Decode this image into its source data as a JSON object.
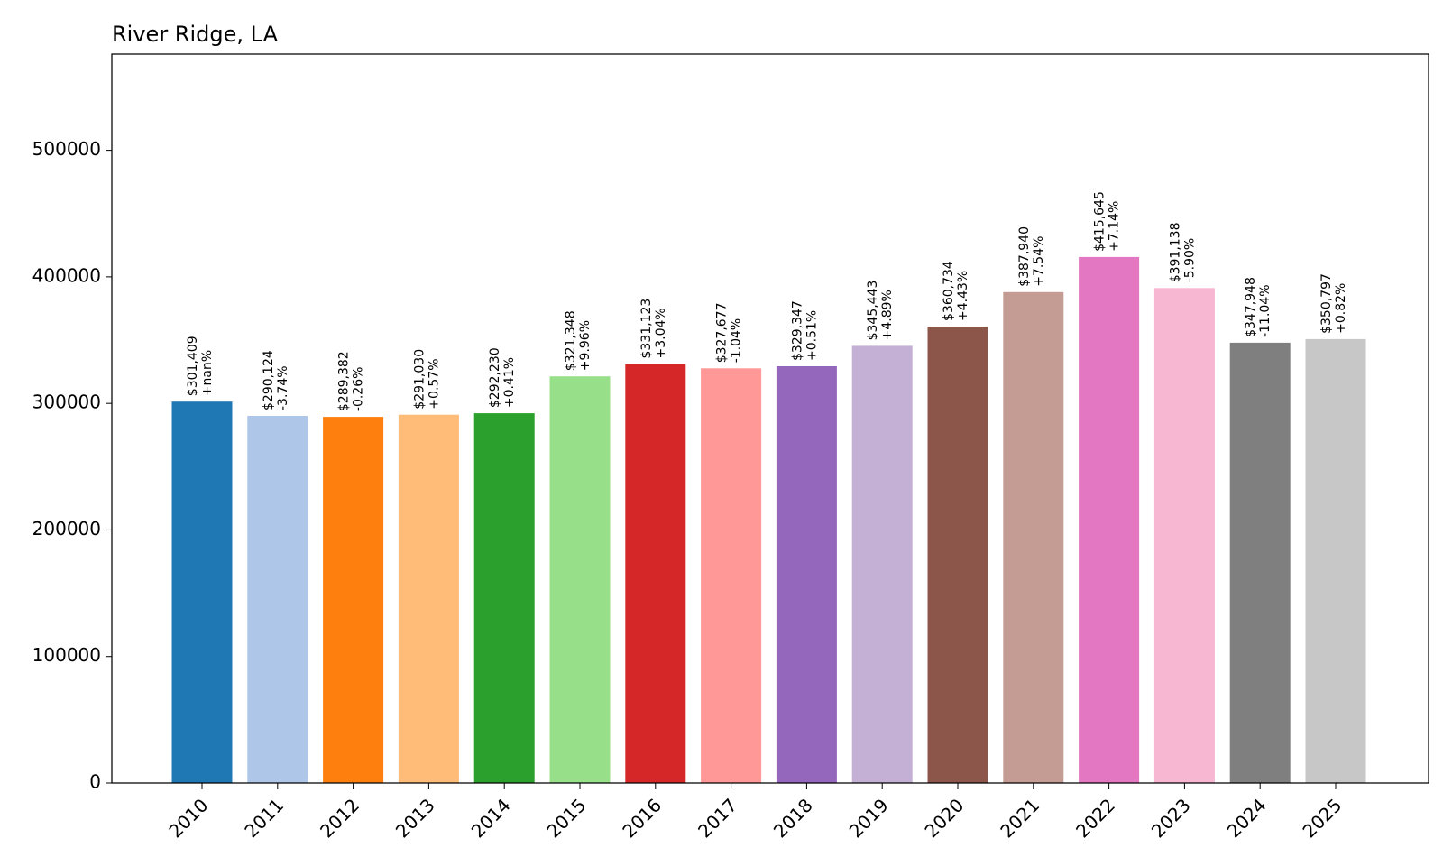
{
  "chart_data": {
    "type": "bar",
    "title": "River Ridge, LA",
    "xlabel": "",
    "ylabel": "",
    "ylim": [
      0,
      576000
    ],
    "yticks": [
      0,
      100000,
      200000,
      300000,
      400000,
      500000
    ],
    "ytick_labels": [
      "0",
      "100000",
      "200000",
      "300000",
      "400000",
      "500000"
    ],
    "grid": false,
    "categories": [
      "2010",
      "2011",
      "2012",
      "2013",
      "2014",
      "2015",
      "2016",
      "2017",
      "2018",
      "2019",
      "2020",
      "2021",
      "2022",
      "2023",
      "2024",
      "2025"
    ],
    "values": [
      301409,
      290124,
      289382,
      291030,
      292230,
      321348,
      331123,
      327677,
      329347,
      345443,
      360734,
      387940,
      415645,
      391138,
      347948,
      350797
    ],
    "value_labels": [
      "$301,409",
      "$290,124",
      "$289,382",
      "$291,030",
      "$292,230",
      "$321,348",
      "$331,123",
      "$327,677",
      "$329,347",
      "$345,443",
      "$360,734",
      "$387,940",
      "$415,645",
      "$391,138",
      "$347,948",
      "$350,797"
    ],
    "change_labels": [
      "+nan%",
      "-3.74%",
      "-0.26%",
      "+0.57%",
      "+0.41%",
      "+9.96%",
      "+3.04%",
      "-1.04%",
      "+0.51%",
      "+4.89%",
      "+4.43%",
      "+7.54%",
      "+7.14%",
      "-5.90%",
      "-11.04%",
      "+0.82%"
    ],
    "colors": [
      "#1f77b4",
      "#aec7e8",
      "#ff7f0e",
      "#ffbb78",
      "#2ca02c",
      "#98df8a",
      "#d62728",
      "#ff9896",
      "#9467bd",
      "#c5b0d5",
      "#8c564b",
      "#c49c94",
      "#e377c2",
      "#f7b6d2",
      "#7f7f7f",
      "#c7c7c7"
    ]
  }
}
